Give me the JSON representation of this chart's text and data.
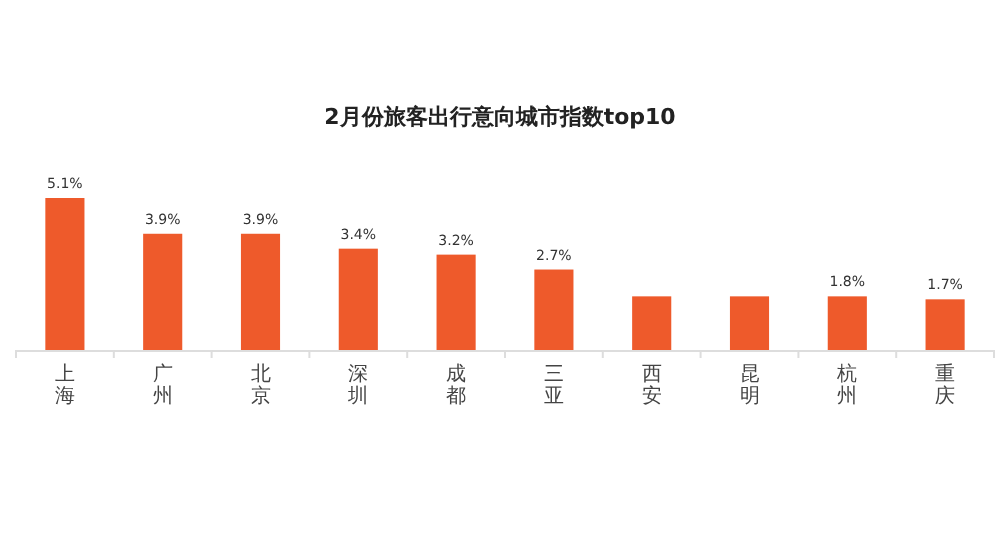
{
  "chart_data": {
    "type": "bar",
    "title": "2月份旅客出行意向城市指数top10",
    "categories": [
      "上海",
      "广州",
      "北京",
      "深圳",
      "成都",
      "三亚",
      "西安",
      "昆明",
      "杭州",
      "重庆"
    ],
    "values": [
      5.1,
      3.9,
      3.9,
      3.4,
      3.2,
      2.7,
      1.8,
      1.8,
      1.8,
      1.7
    ],
    "value_labels": [
      "5.1%",
      "3.9%",
      "3.9%",
      "3.4%",
      "3.2%",
      "2.7%",
      null,
      null,
      "1.8%",
      "1.7%"
    ],
    "color": "#ee5a2b"
  }
}
